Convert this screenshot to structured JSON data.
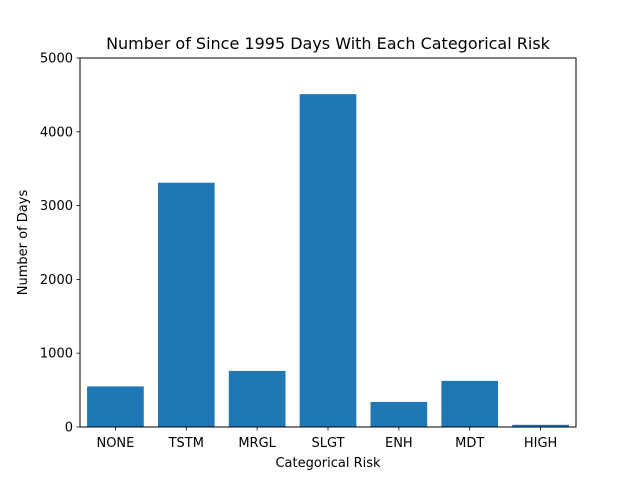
{
  "chart_data": {
    "type": "bar",
    "title": "Number of Since 1995 Days With Each Categorical Risk",
    "xlabel": "Categorical Risk",
    "ylabel": "Number of Days",
    "categories": [
      "NONE",
      "TSTM",
      "MRGL",
      "SLGT",
      "ENH",
      "MDT",
      "HIGH"
    ],
    "values": [
      550,
      3310,
      760,
      4510,
      340,
      625,
      30
    ],
    "ylim": [
      0,
      5000
    ],
    "yticks": [
      0,
      1000,
      2000,
      3000,
      4000,
      5000
    ],
    "bar_color": "#1f77b4",
    "grid": false,
    "legend": "none"
  }
}
